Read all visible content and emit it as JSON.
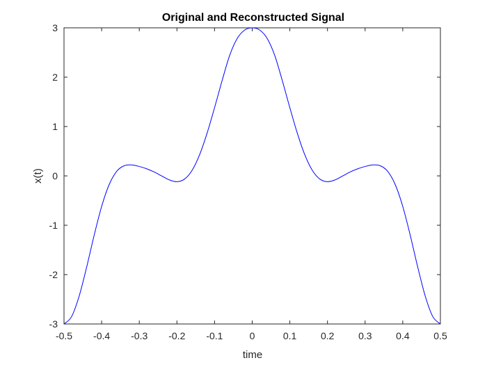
{
  "chart_data": {
    "type": "line",
    "title": "Original and Reconstructed Signal",
    "xlabel": "time",
    "ylabel": "x(t)",
    "xlim": [
      -0.5,
      0.5
    ],
    "ylim": [
      -3,
      3
    ],
    "xticks": [
      -0.5,
      -0.4,
      -0.3,
      -0.2,
      -0.1,
      0,
      0.1,
      0.2,
      0.3,
      0.4,
      0.5
    ],
    "xtick_labels": [
      "-0.5",
      "-0.4",
      "-0.3",
      "-0.2",
      "-0.1",
      "0",
      "0.1",
      "0.2",
      "0.3",
      "0.4",
      "0.5"
    ],
    "yticks": [
      -3,
      -2,
      -1,
      0,
      1,
      2,
      3
    ],
    "ytick_labels": [
      "-3",
      "-2",
      "-1",
      "0",
      "1",
      "2",
      "3"
    ],
    "grid": false,
    "legend": "none",
    "series": [
      {
        "color": "#0000ff",
        "x": [
          -0.5,
          -0.48,
          -0.46,
          -0.44,
          -0.42,
          -0.4,
          -0.38,
          -0.36,
          -0.34,
          -0.32,
          -0.3,
          -0.28,
          -0.26,
          -0.24,
          -0.22,
          -0.2,
          -0.18,
          -0.16,
          -0.14,
          -0.12,
          -0.1,
          -0.08,
          -0.06,
          -0.04,
          -0.02,
          0,
          0.02,
          0.04,
          0.06,
          0.08,
          0.1,
          0.12,
          0.14,
          0.16,
          0.18,
          0.2,
          0.22,
          0.24,
          0.26,
          0.28,
          0.3,
          0.32,
          0.34,
          0.36,
          0.38,
          0.4,
          0.42,
          0.44,
          0.46,
          0.48,
          0.5
        ],
        "y": [
          -3.0,
          -2.853,
          -2.442,
          -1.854,
          -1.206,
          -0.618,
          -0.176,
          0.093,
          0.206,
          0.222,
          0.191,
          0.143,
          0.078,
          -0.003,
          -0.082,
          -0.118,
          -0.066,
          0.109,
          0.424,
          0.862,
          1.382,
          1.929,
          2.438,
          2.782,
          2.954,
          3.0,
          2.954,
          2.782,
          2.438,
          1.929,
          1.382,
          0.862,
          0.424,
          0.109,
          -0.066,
          -0.118,
          -0.082,
          -0.003,
          0.078,
          0.143,
          0.191,
          0.222,
          0.206,
          0.093,
          -0.176,
          -0.618,
          -1.206,
          -1.854,
          -2.442,
          -2.853,
          -3.0
        ]
      }
    ]
  }
}
